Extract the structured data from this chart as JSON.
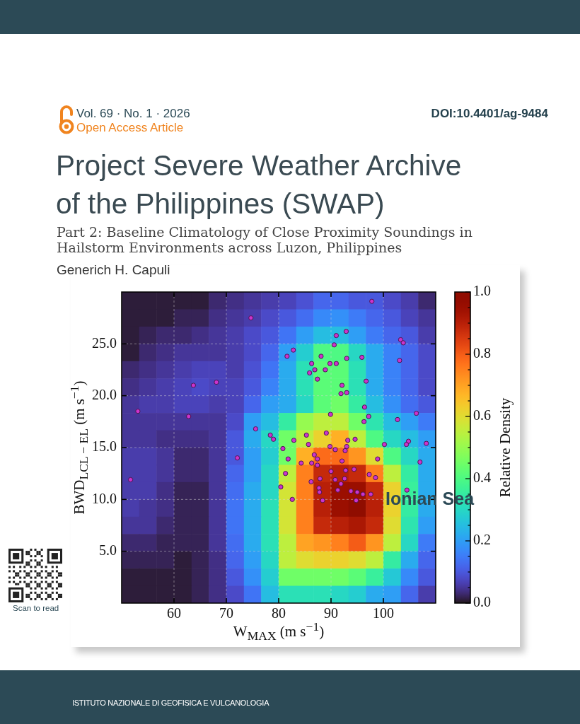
{
  "chart_data": {
    "type": "heatmap",
    "title": "Project Severe Weather Archive of the Philippines (SWAP)",
    "subtitle": "Part 2: Baseline Climatology of Close Proximity Soundings in Hailstorm Environments across Luzon, Philippines",
    "xlabel": "W$_{MAX}$ (m s$^{−1}$)",
    "ylabel": "BWD$_{LCL − EL}$ (m s$^{−1}$)",
    "clabel": "Relative Density",
    "annotations": [
      "Generich H. Capuli",
      "Vol. 69 · No. 1 · 2026",
      "Open Access Article",
      "DOI:10.4401/ag-9484",
      "Ionian Sea",
      "Scan to read",
      "ISTITUTO NAZIONALE DI GEOFISICA E VULCANOLOGIA"
    ],
    "x": [
      51.7,
      55.0,
      58.3,
      61.7,
      65.0,
      68.3,
      71.7,
      75.0,
      78.3,
      81.7,
      85.0,
      88.3,
      91.7,
      95.0,
      98.3,
      101.7,
      105.0,
      108.3
    ],
    "cells": [
      [
        0.01,
        0.01,
        0.01,
        0.01,
        0.01,
        0.03,
        0.04,
        0.05,
        0.06,
        0.07,
        0.09,
        0.12,
        0.12,
        0.1,
        0.1,
        0.08,
        0.06,
        0.03
      ],
      [
        0.01,
        0.01,
        0.01,
        0.02,
        0.02,
        0.04,
        0.05,
        0.06,
        0.08,
        0.1,
        0.13,
        0.17,
        0.18,
        0.15,
        0.12,
        0.1,
        0.07,
        0.05
      ],
      [
        0.01,
        0.02,
        0.03,
        0.03,
        0.04,
        0.05,
        0.06,
        0.08,
        0.1,
        0.14,
        0.2,
        0.25,
        0.25,
        0.2,
        0.15,
        0.12,
        0.1,
        0.06
      ],
      [
        0.01,
        0.03,
        0.04,
        0.05,
        0.05,
        0.05,
        0.06,
        0.08,
        0.12,
        0.2,
        0.28,
        0.4,
        0.4,
        0.3,
        0.22,
        0.16,
        0.12,
        0.08
      ],
      [
        0.03,
        0.04,
        0.05,
        0.06,
        0.07,
        0.07,
        0.06,
        0.09,
        0.14,
        0.22,
        0.32,
        0.42,
        0.42,
        0.32,
        0.22,
        0.16,
        0.12,
        0.08
      ],
      [
        0.04,
        0.05,
        0.06,
        0.07,
        0.08,
        0.07,
        0.07,
        0.1,
        0.16,
        0.22,
        0.32,
        0.42,
        0.42,
        0.32,
        0.22,
        0.16,
        0.12,
        0.08
      ],
      [
        0.05,
        0.06,
        0.06,
        0.07,
        0.07,
        0.06,
        0.07,
        0.12,
        0.2,
        0.22,
        0.3,
        0.42,
        0.45,
        0.35,
        0.25,
        0.18,
        0.13,
        0.1
      ],
      [
        0.05,
        0.05,
        0.05,
        0.05,
        0.05,
        0.05,
        0.08,
        0.2,
        0.25,
        0.35,
        0.5,
        0.55,
        0.55,
        0.45,
        0.33,
        0.25,
        0.2,
        0.15
      ],
      [
        0.05,
        0.05,
        0.04,
        0.04,
        0.04,
        0.05,
        0.1,
        0.22,
        0.3,
        0.45,
        0.55,
        0.62,
        0.68,
        0.55,
        0.4,
        0.3,
        0.25,
        0.2
      ],
      [
        0.06,
        0.06,
        0.05,
        0.03,
        0.03,
        0.05,
        0.1,
        0.2,
        0.28,
        0.45,
        0.68,
        0.78,
        0.78,
        0.72,
        0.6,
        0.4,
        0.3,
        0.22
      ],
      [
        0.06,
        0.06,
        0.05,
        0.03,
        0.03,
        0.05,
        0.12,
        0.2,
        0.3,
        0.55,
        0.75,
        0.88,
        0.9,
        0.88,
        0.75,
        0.55,
        0.35,
        0.22
      ],
      [
        0.06,
        0.06,
        0.04,
        0.02,
        0.02,
        0.05,
        0.13,
        0.22,
        0.3,
        0.58,
        0.75,
        0.9,
        0.95,
        0.95,
        0.88,
        0.62,
        0.36,
        0.22
      ],
      [
        0.06,
        0.05,
        0.04,
        0.02,
        0.02,
        0.05,
        0.14,
        0.22,
        0.32,
        0.58,
        0.75,
        0.9,
        0.95,
        1.0,
        0.9,
        0.62,
        0.35,
        0.22
      ],
      [
        0.05,
        0.05,
        0.03,
        0.02,
        0.02,
        0.05,
        0.14,
        0.22,
        0.32,
        0.58,
        0.75,
        0.88,
        0.9,
        0.92,
        0.88,
        0.6,
        0.33,
        0.2
      ],
      [
        0.03,
        0.03,
        0.02,
        0.02,
        0.02,
        0.05,
        0.13,
        0.22,
        0.32,
        0.55,
        0.7,
        0.72,
        0.75,
        0.8,
        0.72,
        0.55,
        0.3,
        0.15
      ],
      [
        0.02,
        0.02,
        0.02,
        0.01,
        0.02,
        0.04,
        0.12,
        0.2,
        0.3,
        0.55,
        0.6,
        0.62,
        0.62,
        0.6,
        0.55,
        0.35,
        0.22,
        0.12
      ],
      [
        0.01,
        0.01,
        0.01,
        0.01,
        0.02,
        0.04,
        0.1,
        0.18,
        0.28,
        0.45,
        0.45,
        0.45,
        0.45,
        0.42,
        0.36,
        0.27,
        0.17,
        0.1
      ],
      [
        0.01,
        0.01,
        0.01,
        0.01,
        0.02,
        0.04,
        0.08,
        0.14,
        0.25,
        0.32,
        0.32,
        0.32,
        0.3,
        0.28,
        0.22,
        0.2,
        0.12,
        0.06
      ]
    ],
    "clim": [
      0,
      1
    ],
    "cticks": [
      {
        "value": 0,
        "label": "0.0"
      },
      {
        "value": 0.05,
        "label": null
      },
      {
        "value": 0.1,
        "label": null
      },
      {
        "value": 0.15,
        "label": null
      },
      0.2,
      {
        "value": 0.25,
        "label": null
      },
      {
        "value": 0.3,
        "label": null
      },
      {
        "value": 0.35,
        "label": null
      },
      0.4,
      {
        "value": 0.45,
        "label": null
      },
      {
        "value": 0.5,
        "label": null
      },
      {
        "value": 0.55,
        "label": null
      },
      0.6,
      {
        "value": 0.65,
        "label": null
      },
      {
        "value": 0.7,
        "label": null
      },
      {
        "value": 0.75,
        "label": null
      },
      0.8,
      {
        "value": 0.85,
        "label": null
      },
      {
        "value": 0.9,
        "label": null
      },
      {
        "value": 0.95,
        "label": null
      },
      {
        "value": 1,
        "label": "1.0"
      }
    ],
    "xlim": [
      50,
      110
    ],
    "xticks": [
      60,
      70,
      80,
      90,
      100
    ],
    "ylim": [
      0,
      30
    ],
    "yticks": [
      {
        "value": 5,
        "label": "5.0"
      },
      {
        "value": 10,
        "label": "10.0"
      },
      {
        "value": 15,
        "label": "15.0"
      },
      {
        "value": 20,
        "label": "20.0"
      },
      {
        "value": 25,
        "label": "25.0"
      }
    ],
    "grid": true,
    "marker": "circle",
    "series": [
      {
        "type": "scatter",
        "color": "#cc33cc",
        "x": [
          74.7,
          63.7,
          68.1,
          53.1,
          62.8,
          75.6,
          78.4,
          79.0,
          97.8,
          92.9,
          91.0,
          90.6,
          103.3,
          103.8,
          82.8,
          81.6,
          88.1,
          93.0,
          95.9,
          103.1,
          86.3,
          89.8,
          91.0,
          86.9,
          88.9,
          85.9,
          87.4,
          92.1,
          96.7,
          91.9,
          93.0,
          96.4,
          97.2,
          96.3,
          89.9,
          102.7,
          106.3,
          89.1,
          85.3,
          82.9,
          85.7,
          93.2,
          94.6,
          100.2,
          104.8,
          104.4,
          108.2,
          80.8,
          89.8,
          90.8,
          93.0,
          92.7,
          86.8,
          87.4,
          81.8,
          84.3,
          86.3,
          87.4,
          92.1,
          98.9,
          107.0,
          81.3,
          90.0,
          92.8,
          94.4,
          97.3,
          98.5,
          87.9,
          90.8,
          92.6,
          86.2,
          91.9,
          80.4,
          87.7,
          87.8,
          91.3,
          93.8,
          95.0,
          96.1,
          97.6,
          104.5,
          82.6,
          88.4,
          94.8,
          72.1,
          51.7
        ],
        "values": [
          27.5,
          21.0,
          21.3,
          18.5,
          18.0,
          16.8,
          16.2,
          15.8,
          29.1,
          26.2,
          25.8,
          24.9,
          25.4,
          25.1,
          24.4,
          23.8,
          23.8,
          23.6,
          23.7,
          23.4,
          23.1,
          23.1,
          23.1,
          22.5,
          22.5,
          22.2,
          21.6,
          21.0,
          21.4,
          20.2,
          20.3,
          18.9,
          18.0,
          17.5,
          18.2,
          17.7,
          18.3,
          16.4,
          16.2,
          15.7,
          15.3,
          15.7,
          15.8,
          15.3,
          15.6,
          15.3,
          15.4,
          14.9,
          15.1,
          14.8,
          15.1,
          14.7,
          14.3,
          13.9,
          13.9,
          13.5,
          13.5,
          13.3,
          13.7,
          13.9,
          13.6,
          12.5,
          12.7,
          12.8,
          12.9,
          12.4,
          12.1,
          12.0,
          11.9,
          12.0,
          11.7,
          11.5,
          11.2,
          11.1,
          10.7,
          10.9,
          10.8,
          10.7,
          10.5,
          10.5,
          10.9,
          10.0,
          9.9,
          9.9,
          14.0,
          11.9
        ]
      }
    ]
  }
}
